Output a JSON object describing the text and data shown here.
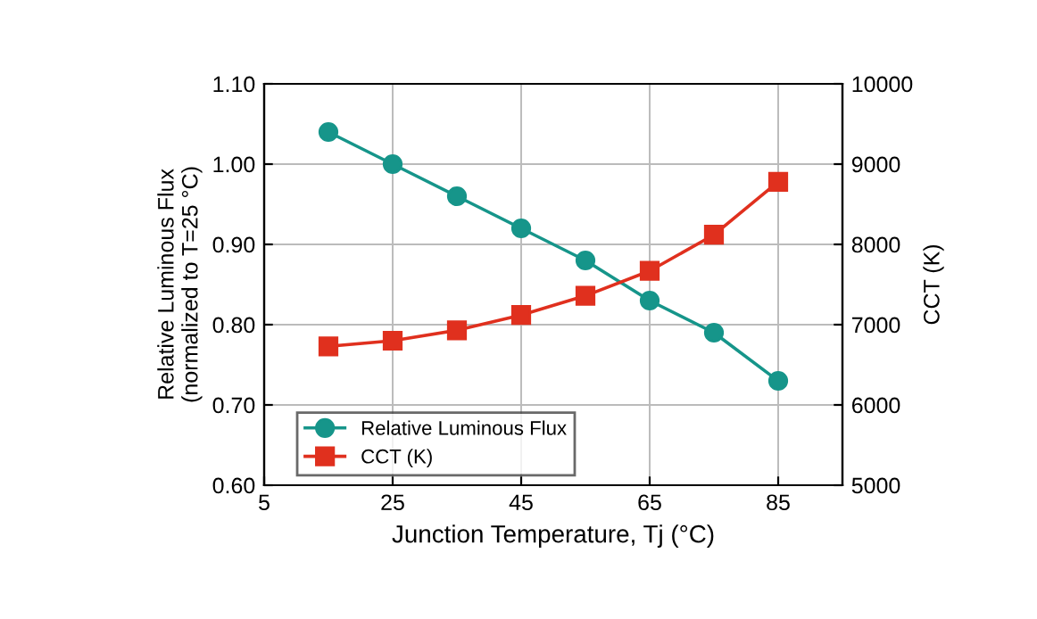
{
  "chart_data": {
    "type": "line",
    "xlabel": "Junction Temperature, Tj (°C)",
    "ylabel": "Relative Luminous Flux\n(normalized to T=25 °C)",
    "y2label": "CCT (K)",
    "x": [
      15,
      25,
      35,
      45,
      55,
      65,
      75,
      85
    ],
    "series": [
      {
        "name": "Relative Luminous Flux",
        "color": "#16958a",
        "marker": "circle",
        "values": [
          1.04,
          1.0,
          0.96,
          0.92,
          0.88,
          0.83,
          0.79,
          0.73
        ]
      },
      {
        "name": "CCT (K)",
        "color": "#e0301e",
        "marker": "square",
        "axis": "y2",
        "values": [
          6730,
          6800,
          6930,
          7120,
          7360,
          7670,
          8120,
          8780
        ]
      }
    ],
    "xlim": [
      5,
      95
    ],
    "xticks": [
      5,
      25,
      45,
      65,
      85
    ],
    "ylim": [
      0.6,
      1.1
    ],
    "yticks": [
      {
        "value": 0.6,
        "label": "0.60"
      },
      {
        "value": 0.7,
        "label": "0.70"
      },
      {
        "value": 0.8,
        "label": "0.80"
      },
      {
        "value": 0.9,
        "label": "0.90"
      },
      {
        "value": 1.0,
        "label": "1.00"
      },
      {
        "value": 1.1,
        "label": "1.10"
      }
    ],
    "y2lim": [
      5000,
      10000
    ],
    "y2ticks": [
      5000,
      6000,
      7000,
      8000,
      9000,
      10000
    ],
    "grid": true,
    "legend": "bottom left"
  }
}
